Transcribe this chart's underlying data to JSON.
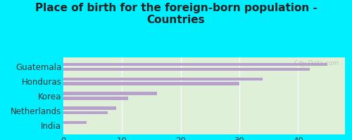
{
  "title": "Place of birth for the foreign-born population -\nCountries",
  "categories": [
    "Guatemala",
    "Honduras",
    "Korea",
    "Netherlands",
    "India"
  ],
  "bars": [
    [
      45,
      42
    ],
    [
      34,
      30
    ],
    [
      16,
      11
    ],
    [
      9,
      7.5
    ],
    [
      4,
      null
    ]
  ],
  "bar_color": "#b8a0cc",
  "bg_color_outer": "#00efff",
  "bg_color_inner": "#dff0d8",
  "xticks": [
    0,
    10,
    20,
    30,
    40
  ],
  "xlim": [
    0,
    48
  ],
  "watermark": "City-Data.com",
  "title_fontsize": 11,
  "label_fontsize": 8.5
}
